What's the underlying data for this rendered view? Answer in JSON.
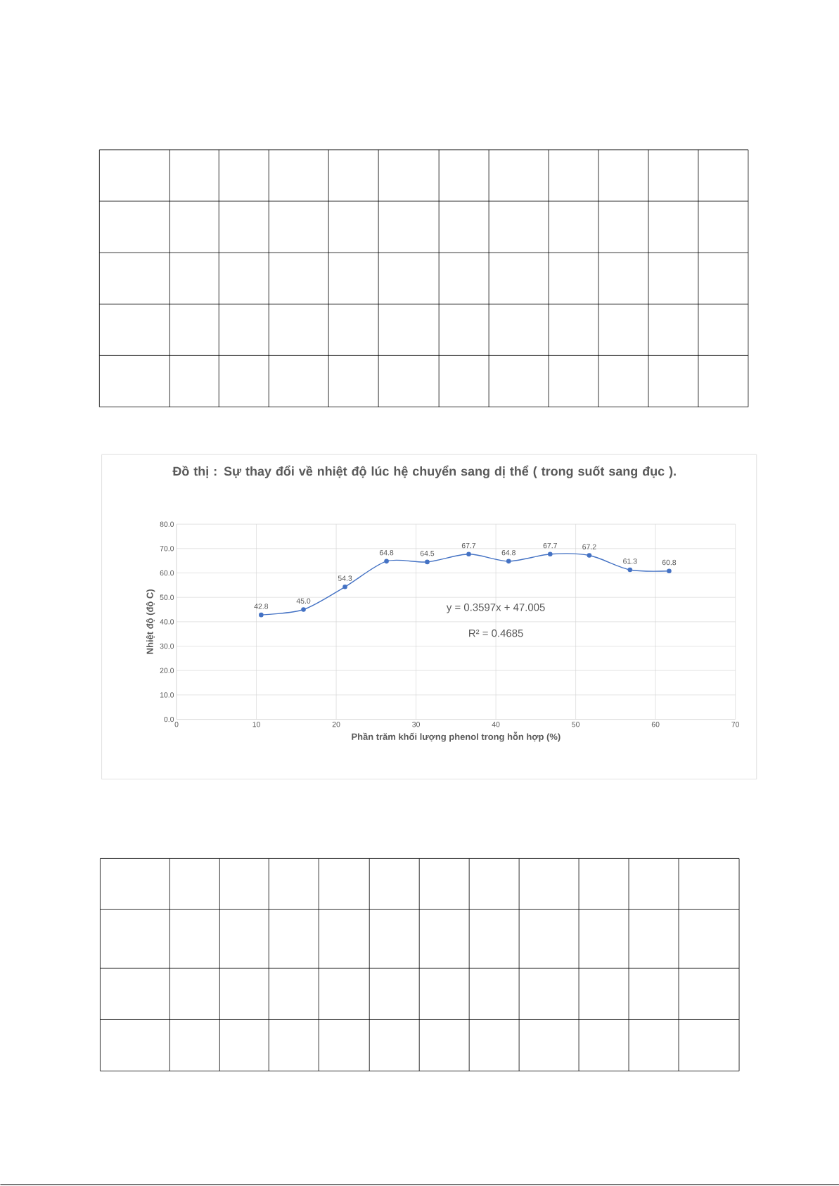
{
  "chart_data": {
    "type": "line",
    "title": "Đồ thị : Sự thay đổi về nhiệt độ lúc hệ chuyển sang dị thể ( trong suốt sang đục ).",
    "xlabel": "Phần trăm khối lượng phenol trong hỗn hợp (%)",
    "ylabel": "Nhiệt độ (độ C)",
    "x": [
      10.6,
      15.9,
      21.1,
      26.3,
      31.4,
      36.6,
      41.6,
      46.8,
      51.7,
      56.8,
      61.7
    ],
    "values": [
      42.8,
      45.0,
      54.3,
      64.8,
      64.5,
      67.7,
      64.8,
      67.7,
      67.2,
      61.3,
      60.8
    ],
    "color": "#4472c4",
    "value_labels": [
      "42.8",
      "45.0",
      "54.3",
      "64.8",
      "64.5",
      "67.7",
      "64.8",
      "67.7",
      "67.2",
      "61.3",
      "60.8"
    ],
    "marker": "circle",
    "line_style": "solid",
    "grid": true,
    "xlim": [
      0,
      70
    ],
    "xticks": [
      0,
      10,
      20,
      30,
      40,
      50,
      60,
      70
    ],
    "ylim": [
      0,
      80
    ],
    "yticks": [
      {
        "value": 0,
        "label": "0.0"
      },
      {
        "value": 10,
        "label": "10.0"
      },
      {
        "value": 20,
        "label": "20.0"
      },
      {
        "value": 30,
        "label": "30.0"
      },
      {
        "value": 40,
        "label": "40.0"
      },
      {
        "value": 50,
        "label": "50.0"
      },
      {
        "value": 60,
        "label": "60.0"
      },
      {
        "value": 70,
        "label": "70.0"
      },
      {
        "value": 80,
        "label": "80.0"
      }
    ],
    "annotations": [
      "y = 0.3597x + 47.005",
      "R² = 0.4685"
    ]
  }
}
